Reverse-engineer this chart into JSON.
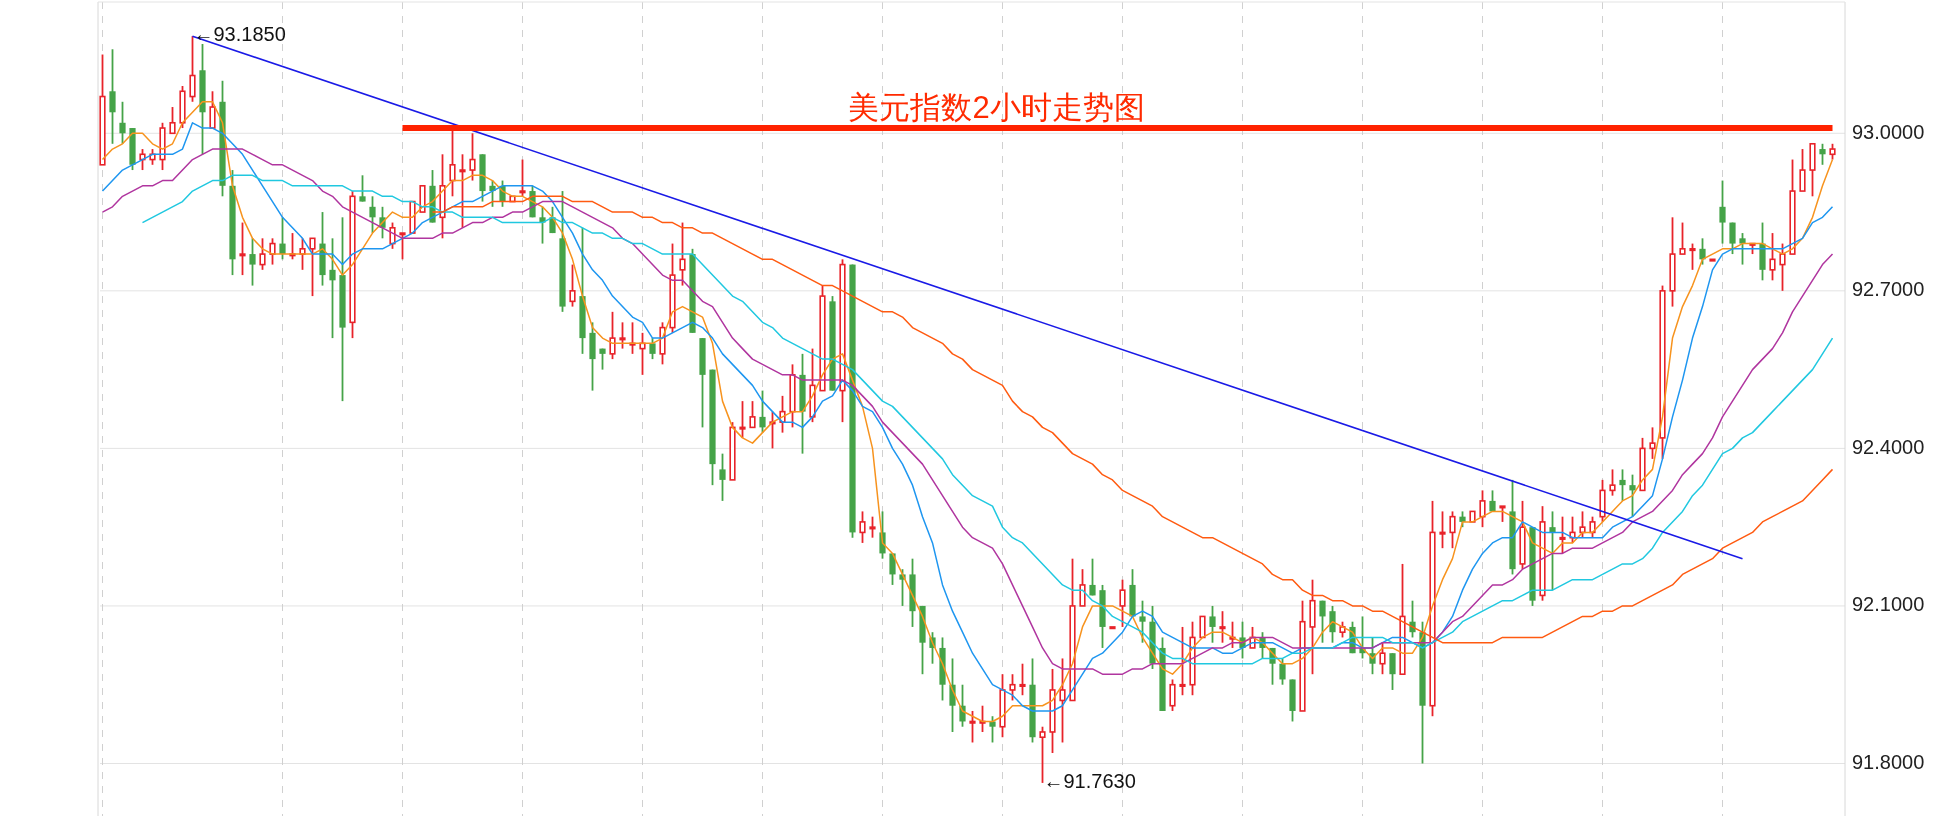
{
  "chart_data": {
    "type": "candlestick",
    "title": "美元指数2小时走势图",
    "categories": [
      null,
      null,
      null,
      null,
      null,
      null,
      null,
      null,
      null,
      null,
      null,
      null,
      null,
      null,
      null,
      null,
      null,
      null,
      null,
      null,
      null,
      null,
      null,
      null,
      null,
      null,
      null,
      null,
      null,
      null,
      null,
      null,
      null,
      null,
      null,
      null,
      null,
      null,
      null,
      null,
      null,
      null,
      null,
      null,
      null,
      null,
      null,
      null,
      null,
      null,
      null,
      null,
      null,
      null,
      null,
      null,
      null,
      null,
      null,
      null,
      null,
      null,
      null,
      null,
      null,
      null,
      null,
      null,
      null,
      null,
      null,
      null,
      null,
      null,
      null,
      null,
      null,
      null,
      null,
      null,
      null,
      null,
      null,
      null,
      null,
      null,
      null,
      null,
      null,
      null,
      null,
      null,
      null,
      null,
      null,
      null,
      null,
      null,
      null,
      null,
      null,
      null,
      null,
      null,
      null,
      null,
      null,
      null,
      null,
      null,
      null,
      null,
      null,
      null,
      null,
      null,
      null,
      null,
      null,
      null,
      null,
      null,
      null,
      null,
      null,
      null,
      null,
      null,
      null,
      null,
      null,
      null,
      null,
      null,
      null,
      null,
      null,
      null,
      null,
      null,
      null,
      null,
      null,
      null,
      null,
      null,
      null,
      null,
      null,
      null,
      null,
      null,
      null,
      null,
      null,
      null,
      null,
      null,
      null,
      null,
      null,
      null,
      null,
      null,
      null,
      null,
      null,
      null,
      null,
      null,
      null,
      null,
      null,
      null
    ],
    "ohlc": [
      [
        92.94,
        93.15,
        92.94,
        93.07
      ],
      [
        93.08,
        93.16,
        92.98,
        93.04
      ],
      [
        93.02,
        93.06,
        92.98,
        93.0
      ],
      [
        93.01,
        93.01,
        92.93,
        92.94
      ],
      [
        92.95,
        92.97,
        92.93,
        92.96
      ],
      [
        92.95,
        92.97,
        92.94,
        92.96
      ],
      [
        92.95,
        93.02,
        92.93,
        93.01
      ],
      [
        93.0,
        93.05,
        93.0,
        93.02
      ],
      [
        93.02,
        93.09,
        93.01,
        93.08
      ],
      [
        93.07,
        93.185,
        93.06,
        93.11
      ],
      [
        93.12,
        93.17,
        92.96,
        93.04
      ],
      [
        93.01,
        93.08,
        93.01,
        93.05
      ],
      [
        93.06,
        93.1,
        92.88,
        92.9
      ],
      [
        92.9,
        92.93,
        92.73,
        92.76
      ],
      [
        92.77,
        92.83,
        92.73,
        92.77
      ],
      [
        92.77,
        92.8,
        92.71,
        92.75
      ],
      [
        92.75,
        92.8,
        92.74,
        92.77
      ],
      [
        92.77,
        92.8,
        92.75,
        92.79
      ],
      [
        92.79,
        92.84,
        92.76,
        92.77
      ],
      [
        92.77,
        92.81,
        92.76,
        92.77
      ],
      [
        92.77,
        92.8,
        92.74,
        92.78
      ],
      [
        92.78,
        92.8,
        92.69,
        92.8
      ],
      [
        92.79,
        92.85,
        92.71,
        92.73
      ],
      [
        92.74,
        92.8,
        92.61,
        92.72
      ],
      [
        92.73,
        92.84,
        92.49,
        92.63
      ],
      [
        92.64,
        92.89,
        92.61,
        92.88
      ],
      [
        92.88,
        92.92,
        92.87,
        92.87
      ],
      [
        92.86,
        92.88,
        92.81,
        92.84
      ],
      [
        92.84,
        92.86,
        92.8,
        92.82
      ],
      [
        92.79,
        92.83,
        92.78,
        92.82
      ],
      [
        92.81,
        92.81,
        92.76,
        92.81
      ],
      [
        92.81,
        92.87,
        92.81,
        92.87
      ],
      [
        92.85,
        92.9,
        92.85,
        92.9
      ],
      [
        92.9,
        92.93,
        92.83,
        92.83
      ],
      [
        92.84,
        92.96,
        92.8,
        92.9
      ],
      [
        92.91,
        93.01,
        92.88,
        92.94
      ],
      [
        92.93,
        92.96,
        92.82,
        92.93
      ],
      [
        92.93,
        93.0,
        92.91,
        92.95
      ],
      [
        92.96,
        92.96,
        92.87,
        92.89
      ],
      [
        92.9,
        92.91,
        92.86,
        92.89
      ],
      [
        92.9,
        92.91,
        92.86,
        92.87
      ],
      [
        92.87,
        92.88,
        92.87,
        92.88
      ],
      [
        92.89,
        92.95,
        92.88,
        92.89
      ],
      [
        92.89,
        92.9,
        92.84,
        92.84
      ],
      [
        92.84,
        92.86,
        92.79,
        92.83
      ],
      [
        92.84,
        92.86,
        92.81,
        92.81
      ],
      [
        92.8,
        92.89,
        92.66,
        92.67
      ],
      [
        92.68,
        92.75,
        92.67,
        92.7
      ],
      [
        92.69,
        92.82,
        92.58,
        92.61
      ],
      [
        92.62,
        92.64,
        92.51,
        92.57
      ],
      [
        92.59,
        92.59,
        92.55,
        92.58
      ],
      [
        92.58,
        92.66,
        92.57,
        92.61
      ],
      [
        92.61,
        92.64,
        92.59,
        92.61
      ],
      [
        92.6,
        92.64,
        92.58,
        92.6
      ],
      [
        92.59,
        92.62,
        92.54,
        92.6
      ],
      [
        92.6,
        92.61,
        92.57,
        92.58
      ],
      [
        92.58,
        92.64,
        92.56,
        92.63
      ],
      [
        92.63,
        92.79,
        92.62,
        92.73
      ],
      [
        92.74,
        92.83,
        92.71,
        92.76
      ],
      [
        92.77,
        92.78,
        92.62,
        92.62
      ],
      [
        92.61,
        92.61,
        92.44,
        92.54
      ],
      [
        92.55,
        92.55,
        92.33,
        92.37
      ],
      [
        92.36,
        92.39,
        92.3,
        92.34
      ],
      [
        92.34,
        92.45,
        92.34,
        92.44
      ],
      [
        92.44,
        92.49,
        92.42,
        92.44
      ],
      [
        92.44,
        92.49,
        92.44,
        92.46
      ],
      [
        92.46,
        92.51,
        92.43,
        92.44
      ],
      [
        92.45,
        92.47,
        92.4,
        92.45
      ],
      [
        92.45,
        92.5,
        92.43,
        92.47
      ],
      [
        92.47,
        92.56,
        92.44,
        92.54
      ],
      [
        92.54,
        92.58,
        92.39,
        92.47
      ],
      [
        92.46,
        92.59,
        92.45,
        92.52
      ],
      [
        92.51,
        92.71,
        92.51,
        92.69
      ],
      [
        92.68,
        92.69,
        92.51,
        92.51
      ],
      [
        92.51,
        92.76,
        92.45,
        92.75
      ],
      [
        92.75,
        92.75,
        92.23,
        92.24
      ],
      [
        92.24,
        92.28,
        92.22,
        92.26
      ],
      [
        92.25,
        92.27,
        92.23,
        92.25
      ],
      [
        92.24,
        92.28,
        92.19,
        92.2
      ],
      [
        92.2,
        92.2,
        92.14,
        92.16
      ],
      [
        92.16,
        92.17,
        92.1,
        92.15
      ],
      [
        92.16,
        92.19,
        92.06,
        92.09
      ],
      [
        92.1,
        92.1,
        91.97,
        92.03
      ],
      [
        92.04,
        92.05,
        91.99,
        92.02
      ],
      [
        92.02,
        92.04,
        91.92,
        91.95
      ],
      [
        91.95,
        92.0,
        91.86,
        91.91
      ],
      [
        91.91,
        91.95,
        91.87,
        91.88
      ],
      [
        91.88,
        91.9,
        91.84,
        91.88
      ],
      [
        91.88,
        91.91,
        91.86,
        91.88
      ],
      [
        91.88,
        91.89,
        91.84,
        91.87
      ],
      [
        91.87,
        91.97,
        91.85,
        91.94
      ],
      [
        91.94,
        91.97,
        91.92,
        91.95
      ],
      [
        91.95,
        91.99,
        91.93,
        91.95
      ],
      [
        91.95,
        92.0,
        91.84,
        91.85
      ],
      [
        91.85,
        91.87,
        91.763,
        91.86
      ],
      [
        91.86,
        91.98,
        91.82,
        91.94
      ],
      [
        91.92,
        92.0,
        91.84,
        91.94
      ],
      [
        91.92,
        92.19,
        91.92,
        92.1
      ],
      [
        92.1,
        92.17,
        92.1,
        92.14
      ],
      [
        92.14,
        92.19,
        92.12,
        92.12
      ],
      [
        92.13,
        92.14,
        92.02,
        92.06
      ],
      [
        92.06,
        92.06,
        92.06,
        92.06
      ],
      [
        92.1,
        92.15,
        92.06,
        92.13
      ],
      [
        92.14,
        92.17,
        92.08,
        92.08
      ],
      [
        92.08,
        92.11,
        92.03,
        92.07
      ],
      [
        92.07,
        92.1,
        91.98,
        91.99
      ],
      [
        92.02,
        92.04,
        91.9,
        91.9
      ],
      [
        91.91,
        91.96,
        91.9,
        91.95
      ],
      [
        91.95,
        92.06,
        91.93,
        91.95
      ],
      [
        91.95,
        92.07,
        91.93,
        92.04
      ],
      [
        92.04,
        92.08,
        92.04,
        92.08
      ],
      [
        92.08,
        92.1,
        92.03,
        92.06
      ],
      [
        92.06,
        92.09,
        92.03,
        92.06
      ],
      [
        92.04,
        92.07,
        92.02,
        92.04
      ],
      [
        92.04,
        92.07,
        92.0,
        92.02
      ],
      [
        92.02,
        92.06,
        92.02,
        92.04
      ],
      [
        92.04,
        92.05,
        92.0,
        92.02
      ],
      [
        92.02,
        92.02,
        91.95,
        91.99
      ],
      [
        91.99,
        92.0,
        91.95,
        91.96
      ],
      [
        91.96,
        91.96,
        91.88,
        91.9
      ],
      [
        91.9,
        92.11,
        91.9,
        92.07
      ],
      [
        92.06,
        92.15,
        91.97,
        92.11
      ],
      [
        92.11,
        92.11,
        92.03,
        92.08
      ],
      [
        92.09,
        92.1,
        92.03,
        92.05
      ],
      [
        92.05,
        92.07,
        92.04,
        92.06
      ],
      [
        92.06,
        92.07,
        92.01,
        92.01
      ],
      [
        92.02,
        92.08,
        92.0,
        92.01
      ],
      [
        92.01,
        92.04,
        91.97,
        91.99
      ],
      [
        91.99,
        92.03,
        91.97,
        92.01
      ],
      [
        92.01,
        92.01,
        91.94,
        91.97
      ],
      [
        91.97,
        92.18,
        91.97,
        92.08
      ],
      [
        92.07,
        92.11,
        92.04,
        92.05
      ],
      [
        92.05,
        92.07,
        91.8,
        91.91
      ],
      [
        91.91,
        92.3,
        91.89,
        92.24
      ],
      [
        92.24,
        92.28,
        92.21,
        92.24
      ],
      [
        92.24,
        92.28,
        92.21,
        92.27
      ],
      [
        92.27,
        92.28,
        92.25,
        92.26
      ],
      [
        92.26,
        92.28,
        92.26,
        92.28
      ],
      [
        92.27,
        92.32,
        92.25,
        92.3
      ],
      [
        92.3,
        92.32,
        92.28,
        92.28
      ],
      [
        92.29,
        92.29,
        92.26,
        92.29
      ],
      [
        92.28,
        92.34,
        92.16,
        92.17
      ],
      [
        92.18,
        92.3,
        92.17,
        92.25
      ],
      [
        92.25,
        92.25,
        92.1,
        92.11
      ],
      [
        92.12,
        92.29,
        92.11,
        92.26
      ],
      [
        92.25,
        92.28,
        92.13,
        92.24
      ],
      [
        92.23,
        92.27,
        92.2,
        92.23
      ],
      [
        92.23,
        92.27,
        92.22,
        92.24
      ],
      [
        92.24,
        92.28,
        92.23,
        92.25
      ],
      [
        92.24,
        92.27,
        92.23,
        92.26
      ],
      [
        92.27,
        92.34,
        92.26,
        92.32
      ],
      [
        92.32,
        92.36,
        92.31,
        92.33
      ],
      [
        92.34,
        92.36,
        92.3,
        92.33
      ],
      [
        92.33,
        92.35,
        92.27,
        92.32
      ],
      [
        92.32,
        92.42,
        92.32,
        92.4
      ],
      [
        92.4,
        92.44,
        92.38,
        92.41
      ],
      [
        92.42,
        92.71,
        92.38,
        92.7
      ],
      [
        92.7,
        92.84,
        92.67,
        92.77
      ],
      [
        92.77,
        92.83,
        92.77,
        92.78
      ],
      [
        92.78,
        92.79,
        92.74,
        92.78
      ],
      [
        92.78,
        92.8,
        92.75,
        92.76
      ],
      [
        92.76,
        92.76,
        92.76,
        92.76
      ],
      [
        92.86,
        92.91,
        92.79,
        92.83
      ],
      [
        92.83,
        92.83,
        92.77,
        92.79
      ],
      [
        92.8,
        92.81,
        92.75,
        92.79
      ],
      [
        92.79,
        92.79,
        92.77,
        92.79
      ],
      [
        92.79,
        92.83,
        92.72,
        92.74
      ],
      [
        92.74,
        92.81,
        92.72,
        92.76
      ],
      [
        92.75,
        92.79,
        92.7,
        92.77
      ],
      [
        92.77,
        92.95,
        92.77,
        92.89
      ],
      [
        92.89,
        92.97,
        92.89,
        92.93
      ],
      [
        92.93,
        92.98,
        92.88,
        92.98
      ],
      [
        92.97,
        92.98,
        92.94,
        92.96
      ],
      [
        92.96,
        92.98,
        92.95,
        92.97
      ]
    ],
    "series": [
      {
        "type": "line",
        "color": "#f7931e",
        "values": [
          92.95,
          92.97,
          92.98,
          93.0,
          93.0,
          92.98,
          92.97,
          92.98,
          93.02,
          93.04,
          93.06,
          93.06,
          93.02,
          92.9,
          92.84,
          92.8,
          92.78,
          92.77,
          92.77,
          92.77,
          92.77,
          92.77,
          92.78,
          92.76,
          92.73,
          92.75,
          92.78,
          92.81,
          92.83,
          92.85,
          92.84,
          92.84,
          92.86,
          92.87,
          92.89,
          92.91,
          92.91,
          92.92,
          92.92,
          92.91,
          92.89,
          92.88,
          92.88,
          92.87,
          92.86,
          92.84,
          92.81,
          92.76,
          92.69,
          92.63,
          92.61,
          92.6,
          92.6,
          92.6,
          92.6,
          92.6,
          92.61,
          92.66,
          92.67,
          92.66,
          92.65,
          92.6,
          92.49,
          92.44,
          92.42,
          92.41,
          92.43,
          92.45,
          92.46,
          92.47,
          92.47,
          92.5,
          92.54,
          92.57,
          92.58,
          92.53,
          92.48,
          92.4,
          92.22,
          92.2,
          92.16,
          92.12,
          92.08,
          92.03,
          91.99,
          91.94,
          91.9,
          91.89,
          91.88,
          91.88,
          91.89,
          91.91,
          91.91,
          91.91,
          91.91,
          91.92,
          91.95,
          91.99,
          92.06,
          92.1,
          92.1,
          92.1,
          92.09,
          92.08,
          92.04,
          92.01,
          91.98,
          91.97,
          91.99,
          92.02,
          92.04,
          92.05,
          92.05,
          92.04,
          92.03,
          92.04,
          92.03,
          92.01,
          91.99,
          91.99,
          92.0,
          92.02,
          92.05,
          92.07,
          92.06,
          92.05,
          92.02,
          92.0,
          92.02,
          92.02,
          92.01,
          92.01,
          92.04,
          92.1,
          92.15,
          92.19,
          92.26,
          92.26,
          92.27,
          92.28,
          92.28,
          92.27,
          92.26,
          92.22,
          92.21,
          92.2,
          92.22,
          92.22,
          92.24,
          92.24,
          92.26,
          92.28,
          92.3,
          92.31,
          92.34,
          92.36,
          92.46,
          92.61,
          92.67,
          92.71,
          92.76,
          92.77,
          92.78,
          92.78,
          92.79,
          92.79,
          92.79,
          92.78,
          92.77,
          92.78,
          92.8,
          92.84,
          92.9,
          92.95
        ]
      },
      {
        "type": "line",
        "color": "#1e96f0",
        "values": [
          92.89,
          92.91,
          92.93,
          92.94,
          92.95,
          92.96,
          92.96,
          92.96,
          92.97,
          93.02,
          93.01,
          93.01,
          93.0,
          92.98,
          92.96,
          92.93,
          92.9,
          92.87,
          92.84,
          92.82,
          92.8,
          92.77,
          92.77,
          92.77,
          92.75,
          92.77,
          92.78,
          92.78,
          92.78,
          92.79,
          92.8,
          92.81,
          92.83,
          92.84,
          92.85,
          92.86,
          92.87,
          92.87,
          92.88,
          92.89,
          92.9,
          92.9,
          92.9,
          92.9,
          92.89,
          92.87,
          92.84,
          92.81,
          92.77,
          92.74,
          92.72,
          92.69,
          92.67,
          92.65,
          92.64,
          92.61,
          92.61,
          92.62,
          92.63,
          92.64,
          92.63,
          92.61,
          92.58,
          92.56,
          92.54,
          92.52,
          92.49,
          92.47,
          92.45,
          92.45,
          92.44,
          92.46,
          92.49,
          92.5,
          92.53,
          92.51,
          92.48,
          92.47,
          92.44,
          92.4,
          92.37,
          92.33,
          92.27,
          92.22,
          92.14,
          92.09,
          92.05,
          92.01,
          91.98,
          91.95,
          91.94,
          91.93,
          91.91,
          91.9,
          91.9,
          91.9,
          91.91,
          91.94,
          91.97,
          92.0,
          92.01,
          92.03,
          92.05,
          92.08,
          92.09,
          92.08,
          92.05,
          92.04,
          92.03,
          92.02,
          92.02,
          92.02,
          92.01,
          92.01,
          92.02,
          92.03,
          92.03,
          92.03,
          92.02,
          92.01,
          92.02,
          92.02,
          92.02,
          92.02,
          92.03,
          92.03,
          92.02,
          92.02,
          92.03,
          92.04,
          92.04,
          92.03,
          92.02,
          92.03,
          92.05,
          92.08,
          92.13,
          92.17,
          92.2,
          92.22,
          92.23,
          92.23,
          92.26,
          92.25,
          92.24,
          92.24,
          92.24,
          92.23,
          92.23,
          92.23,
          92.23,
          92.25,
          92.26,
          92.27,
          92.29,
          92.31,
          92.38,
          92.46,
          92.53,
          92.61,
          92.67,
          92.74,
          92.77,
          92.78,
          92.78,
          92.78,
          92.78,
          92.78,
          92.78,
          92.79,
          92.8,
          92.83,
          92.84,
          92.86
        ]
      },
      {
        "type": "line",
        "color": "#b0359f",
        "values": [
          92.85,
          92.86,
          92.88,
          92.89,
          92.9,
          92.9,
          92.91,
          92.91,
          92.93,
          92.95,
          92.96,
          92.97,
          92.97,
          92.97,
          92.97,
          92.96,
          92.95,
          92.94,
          92.94,
          92.93,
          92.92,
          92.91,
          92.89,
          92.88,
          92.86,
          92.85,
          92.84,
          92.83,
          92.82,
          92.81,
          92.8,
          92.8,
          92.8,
          92.8,
          92.81,
          92.81,
          92.82,
          92.83,
          92.83,
          92.84,
          92.84,
          92.85,
          92.85,
          92.86,
          92.87,
          92.87,
          92.87,
          92.86,
          92.85,
          92.84,
          92.83,
          92.82,
          92.8,
          92.79,
          92.77,
          92.75,
          92.73,
          92.72,
          92.72,
          92.7,
          92.68,
          92.67,
          92.64,
          92.61,
          92.59,
          92.57,
          92.56,
          92.55,
          92.54,
          92.54,
          92.53,
          92.53,
          92.53,
          92.53,
          92.53,
          92.52,
          92.5,
          92.48,
          92.45,
          92.43,
          92.41,
          92.39,
          92.37,
          92.34,
          92.31,
          92.28,
          92.25,
          92.23,
          92.22,
          92.21,
          92.18,
          92.14,
          92.1,
          92.06,
          92.02,
          91.99,
          91.98,
          91.98,
          91.98,
          91.98,
          91.97,
          91.97,
          91.97,
          91.98,
          91.98,
          91.99,
          91.99,
          91.99,
          91.99,
          92.0,
          92.01,
          92.02,
          92.02,
          92.03,
          92.03,
          92.04,
          92.04,
          92.04,
          92.03,
          92.02,
          92.02,
          92.02,
          92.02,
          92.02,
          92.02,
          92.02,
          92.02,
          92.02,
          92.03,
          92.03,
          92.03,
          92.03,
          92.03,
          92.03,
          92.05,
          92.07,
          92.08,
          92.1,
          92.12,
          92.14,
          92.14,
          92.15,
          92.17,
          92.18,
          92.19,
          92.2,
          92.2,
          92.21,
          92.21,
          92.21,
          92.22,
          92.23,
          92.24,
          92.26,
          92.27,
          92.28,
          92.3,
          92.32,
          92.35,
          92.37,
          92.39,
          92.42,
          92.46,
          92.49,
          92.52,
          92.55,
          92.57,
          92.59,
          92.62,
          92.66,
          92.69,
          92.72,
          92.75,
          92.77
        ]
      },
      {
        "type": "line",
        "color": "#20c8e0",
        "values": [
          null,
          null,
          null,
          null,
          92.83,
          92.84,
          92.85,
          92.86,
          92.87,
          92.89,
          92.9,
          92.91,
          92.91,
          92.92,
          92.92,
          92.92,
          92.91,
          92.91,
          92.91,
          92.9,
          92.9,
          92.9,
          92.9,
          92.9,
          92.9,
          92.89,
          92.89,
          92.89,
          92.88,
          92.88,
          92.87,
          92.87,
          92.86,
          92.86,
          92.85,
          92.85,
          92.84,
          92.84,
          92.84,
          92.84,
          92.83,
          92.83,
          92.83,
          92.83,
          92.83,
          92.84,
          92.83,
          92.83,
          92.82,
          92.81,
          92.81,
          92.8,
          92.8,
          92.79,
          92.79,
          92.78,
          92.77,
          92.77,
          92.77,
          92.77,
          92.75,
          92.73,
          92.71,
          92.69,
          92.68,
          92.66,
          92.64,
          92.63,
          92.61,
          92.6,
          92.59,
          92.58,
          92.57,
          92.57,
          92.56,
          92.55,
          92.53,
          92.51,
          92.49,
          92.48,
          92.46,
          92.44,
          92.42,
          92.4,
          92.38,
          92.35,
          92.33,
          92.31,
          92.3,
          92.29,
          92.25,
          92.23,
          92.22,
          92.2,
          92.18,
          92.16,
          92.14,
          92.13,
          92.13,
          92.11,
          92.1,
          92.08,
          92.07,
          92.06,
          92.05,
          92.03,
          92.01,
          92.0,
          92.0,
          91.99,
          91.99,
          91.99,
          91.99,
          91.99,
          91.99,
          91.99,
          92.0,
          92.0,
          92.0,
          92.01,
          92.01,
          92.02,
          92.02,
          92.02,
          92.03,
          92.04,
          92.04,
          92.04,
          92.04,
          92.03,
          92.03,
          92.03,
          92.02,
          92.03,
          92.04,
          92.05,
          92.07,
          92.08,
          92.09,
          92.1,
          92.11,
          92.11,
          92.12,
          92.13,
          92.13,
          92.13,
          92.14,
          92.15,
          92.15,
          92.15,
          92.16,
          92.17,
          92.18,
          92.18,
          92.19,
          92.21,
          92.24,
          92.26,
          92.28,
          92.31,
          92.33,
          92.36,
          92.39,
          92.4,
          92.42,
          92.43,
          92.45,
          92.47,
          92.49,
          92.51,
          92.53,
          92.55,
          92.58,
          92.61
        ]
      },
      {
        "type": "line",
        "color": "#ff5a10",
        "values": [
          null,
          null,
          null,
          null,
          null,
          null,
          null,
          null,
          null,
          null,
          null,
          null,
          null,
          null,
          null,
          null,
          null,
          null,
          null,
          null,
          null,
          null,
          null,
          null,
          null,
          null,
          null,
          null,
          null,
          null,
          null,
          null,
          null,
          92.85,
          92.85,
          92.86,
          92.86,
          92.86,
          92.86,
          92.87,
          92.87,
          92.87,
          92.87,
          92.88,
          92.88,
          92.88,
          92.88,
          92.87,
          92.87,
          92.87,
          92.86,
          92.85,
          92.85,
          92.85,
          92.84,
          92.84,
          92.83,
          92.83,
          92.82,
          92.82,
          92.81,
          92.81,
          92.8,
          92.79,
          92.78,
          92.77,
          92.76,
          92.76,
          92.75,
          92.74,
          92.73,
          92.72,
          92.71,
          92.71,
          92.7,
          92.69,
          92.68,
          92.67,
          92.66,
          92.66,
          92.65,
          92.63,
          92.62,
          92.61,
          92.6,
          92.58,
          92.57,
          92.55,
          92.54,
          92.53,
          92.52,
          92.49,
          92.47,
          92.46,
          92.44,
          92.43,
          92.41,
          92.39,
          92.38,
          92.37,
          92.35,
          92.34,
          92.32,
          92.31,
          92.3,
          92.29,
          92.27,
          92.26,
          92.25,
          92.24,
          92.23,
          92.23,
          92.22,
          92.21,
          92.2,
          92.19,
          92.18,
          92.16,
          92.15,
          92.15,
          92.13,
          92.12,
          92.12,
          92.11,
          92.11,
          92.1,
          92.1,
          92.09,
          92.09,
          92.08,
          92.07,
          92.06,
          92.05,
          92.04,
          92.03,
          92.03,
          92.03,
          92.03,
          92.03,
          92.03,
          92.04,
          92.04,
          92.04,
          92.04,
          92.04,
          92.05,
          92.06,
          92.07,
          92.08,
          92.08,
          92.09,
          92.09,
          92.1,
          92.1,
          92.11,
          92.12,
          92.13,
          92.14,
          92.16,
          92.17,
          92.18,
          92.19,
          92.21,
          92.22,
          92.23,
          92.24,
          92.26,
          92.27,
          92.28,
          92.29,
          92.3,
          92.32,
          92.34,
          92.36
        ]
      },
      {
        "type": "line",
        "color": "#1a1ae6",
        "values": [
          null,
          null,
          null,
          null,
          null,
          null,
          null,
          null,
          null,
          93.185,
          null,
          null,
          null,
          null,
          null,
          null,
          null,
          null,
          null,
          null,
          null,
          null,
          null,
          null,
          null,
          null,
          null,
          null,
          null,
          null,
          null,
          null,
          null,
          null,
          null,
          null,
          null,
          null,
          null,
          null,
          null,
          null,
          null,
          null,
          null,
          null,
          null,
          null,
          null,
          null,
          null,
          null,
          null,
          null,
          null,
          null,
          null,
          null,
          null,
          null,
          null,
          null,
          null,
          null,
          null,
          null,
          null,
          null,
          null,
          null,
          null,
          null,
          null,
          null,
          null,
          null,
          null,
          null,
          null,
          null,
          null,
          null,
          null,
          null,
          null,
          null,
          null,
          null,
          null,
          null,
          null,
          null,
          null,
          null,
          null,
          null,
          null,
          null,
          null,
          null,
          null,
          null,
          null,
          null,
          null,
          null,
          null,
          null,
          null,
          null,
          null,
          null,
          null,
          null,
          null,
          null,
          null,
          null,
          null,
          null,
          null,
          null,
          null,
          null,
          null,
          null,
          null,
          null,
          null,
          null,
          null,
          null,
          null,
          null,
          null,
          null,
          null,
          null,
          null,
          null,
          null,
          null,
          null,
          null,
          null,
          null,
          null,
          null,
          null,
          null,
          null,
          null,
          null,
          null,
          null,
          null,
          null,
          null,
          null,
          null,
          null,
          null,
          null,
          null,
          92.19,
          null,
          null,
          null,
          null,
          null,
          null,
          null,
          null,
          null
        ]
      },
      {
        "type": "line",
        "color": "#ff2200",
        "values": [
          null,
          null,
          null,
          null,
          null,
          null,
          null,
          null,
          null,
          null,
          null,
          null,
          null,
          null,
          null,
          null,
          null,
          null,
          null,
          null,
          null,
          null,
          null,
          null,
          null,
          null,
          null,
          null,
          null,
          null,
          93.01,
          null,
          null,
          null,
          null,
          null,
          null,
          null,
          null,
          null,
          null,
          null,
          null,
          null,
          null,
          null,
          null,
          null,
          null,
          null,
          null,
          null,
          null,
          null,
          null,
          null,
          null,
          null,
          null,
          null,
          null,
          null,
          null,
          null,
          null,
          null,
          null,
          null,
          null,
          null,
          null,
          null,
          null,
          null,
          null,
          null,
          null,
          null,
          null,
          null,
          null,
          null,
          null,
          null,
          null,
          null,
          null,
          null,
          null,
          null,
          null,
          null,
          null,
          null,
          null,
          null,
          null,
          null,
          null,
          null,
          null,
          null,
          null,
          null,
          null,
          null,
          null,
          null,
          null,
          null,
          null,
          null,
          null,
          null,
          null,
          null,
          null,
          null,
          null,
          null,
          null,
          null,
          null,
          null,
          null,
          null,
          null,
          null,
          null,
          null,
          null,
          null,
          null,
          null,
          null,
          null,
          null,
          null,
          null,
          null,
          null,
          null,
          null,
          null,
          null,
          null,
          null,
          null,
          null,
          null,
          null,
          null,
          null,
          null,
          null,
          null,
          null,
          null,
          null,
          null,
          null,
          null,
          null,
          null,
          null,
          null,
          null,
          null,
          null,
          null,
          null,
          null,
          null,
          93.01
        ]
      }
    ],
    "annotations": [
      "←93.1850",
      "←91.7630"
    ],
    "ylim": [
      91.7,
      93.25
    ],
    "yticks": [
      {
        "value": 91.8,
        "label": "91.8000"
      },
      {
        "value": 92.1,
        "label": "92.1000"
      },
      {
        "value": 92.4,
        "label": "92.4000"
      },
      {
        "value": 92.7,
        "label": "92.7000"
      },
      {
        "value": 93.0,
        "label": "93.0000"
      }
    ],
    "grid": true,
    "tick_labels": "y"
  }
}
